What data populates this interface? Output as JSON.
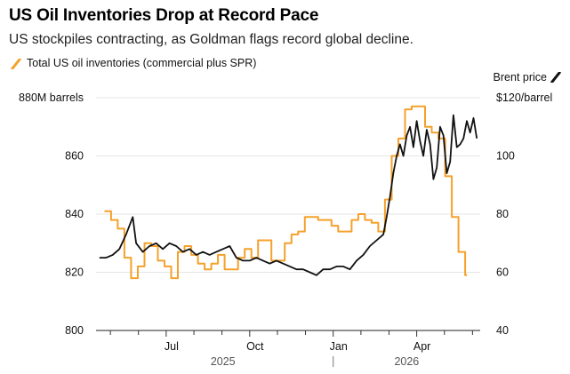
{
  "title": "US Oil Inventories Drop at Record Pace",
  "subtitle": "US stockpiles contracting, as Goldman flags record global decline.",
  "colors": {
    "inventories": "#F5A12C",
    "brent": "#111111",
    "grid": "#e6e6e6"
  },
  "chart_data": {
    "type": "line",
    "title": "US Oil Inventories Drop at Record Pace",
    "subtitle": "US stockpiles contracting, as Goldman flags record global decline.",
    "grid": true,
    "legend": "top",
    "x_axis": {
      "tick_labels": [
        "Jul",
        "Oct",
        "Jan",
        "Apr"
      ],
      "tick_months": [
        2025.5,
        2025.75,
        2026.0,
        2026.25
      ],
      "minor_ticks": [
        2025.333,
        2025.417,
        2025.583,
        2025.667,
        2025.833,
        2025.917,
        2026.083,
        2026.167,
        2026.333,
        2026.417
      ],
      "year_labels": [
        "2025",
        "2026"
      ],
      "range": [
        2025.29,
        2026.44
      ]
    },
    "left_axis": {
      "unit_label": "880M barrels",
      "range": [
        800,
        880
      ],
      "ticks": [
        800,
        820,
        840,
        860
      ]
    },
    "right_axis": {
      "title": "Brent price",
      "unit_label": "$120/barrel",
      "range": [
        40,
        120
      ],
      "ticks": [
        40,
        60,
        80,
        100
      ]
    },
    "series": [
      {
        "name": "Total US oil inventories (commercial plus SPR)",
        "axis": "left",
        "style": "step",
        "x": [
          2025.315,
          2025.335,
          2025.355,
          2025.375,
          2025.395,
          2025.415,
          2025.435,
          2025.455,
          2025.475,
          2025.495,
          2025.515,
          2025.535,
          2025.555,
          2025.575,
          2025.595,
          2025.615,
          2025.635,
          2025.655,
          2025.675,
          2025.695,
          2025.715,
          2025.735,
          2025.755,
          2025.775,
          2025.795,
          2025.815,
          2025.835,
          2025.855,
          2025.875,
          2025.895,
          2025.915,
          2025.935,
          2025.955,
          2025.975,
          2025.995,
          2026.015,
          2026.035,
          2026.055,
          2026.075,
          2026.095,
          2026.115,
          2026.135,
          2026.155,
          2026.175,
          2026.195,
          2026.215,
          2026.235,
          2026.255,
          2026.275,
          2026.295,
          2026.315,
          2026.335,
          2026.355,
          2026.375,
          2026.395
        ],
        "values": [
          841,
          838,
          835,
          825,
          818,
          822,
          830,
          829,
          824,
          822,
          818,
          827,
          829,
          826,
          823,
          821,
          823,
          826,
          821,
          821,
          825,
          828,
          825,
          831,
          831,
          824,
          824,
          830,
          833,
          834,
          839,
          839,
          838,
          838,
          836,
          834,
          834,
          838,
          840,
          838,
          837,
          834,
          845,
          860,
          866,
          876,
          877,
          877,
          870,
          868,
          866,
          853,
          839,
          827,
          819
        ]
      },
      {
        "name": "Brent price",
        "axis": "right",
        "style": "line",
        "x": [
          2025.3,
          2025.32,
          2025.34,
          2025.36,
          2025.38,
          2025.4,
          2025.41,
          2025.43,
          2025.45,
          2025.47,
          2025.49,
          2025.51,
          2025.53,
          2025.55,
          2025.57,
          2025.59,
          2025.61,
          2025.63,
          2025.65,
          2025.67,
          2025.69,
          2025.71,
          2025.73,
          2025.75,
          2025.77,
          2025.79,
          2025.81,
          2025.83,
          2025.85,
          2025.87,
          2025.89,
          2025.91,
          2025.93,
          2025.95,
          2025.97,
          2025.99,
          2026.01,
          2026.03,
          2026.05,
          2026.07,
          2026.09,
          2026.11,
          2026.13,
          2026.15,
          2026.16,
          2026.17,
          2026.18,
          2026.19,
          2026.2,
          2026.21,
          2026.22,
          2026.23,
          2026.24,
          2026.25,
          2026.26,
          2026.27,
          2026.28,
          2026.29,
          2026.3,
          2026.31,
          2026.32,
          2026.33,
          2026.34,
          2026.35,
          2026.36,
          2026.37,
          2026.38,
          2026.39,
          2026.4,
          2026.41,
          2026.42,
          2026.43
        ],
        "values": [
          65,
          65,
          66,
          68,
          73,
          79,
          70,
          67,
          69,
          70,
          68,
          70,
          69,
          67,
          68,
          66,
          67,
          66,
          67,
          68,
          69,
          65,
          64,
          64,
          65,
          64,
          63,
          64,
          63,
          62,
          61,
          61,
          60,
          59,
          61,
          61,
          62,
          62,
          61,
          64,
          66,
          69,
          71,
          73,
          79,
          86,
          94,
          100,
          104,
          100,
          107,
          110,
          103,
          112,
          105,
          100,
          109,
          104,
          92,
          96,
          110,
          107,
          94,
          98,
          114,
          103,
          104,
          106,
          112,
          108,
          113,
          106
        ]
      }
    ]
  }
}
